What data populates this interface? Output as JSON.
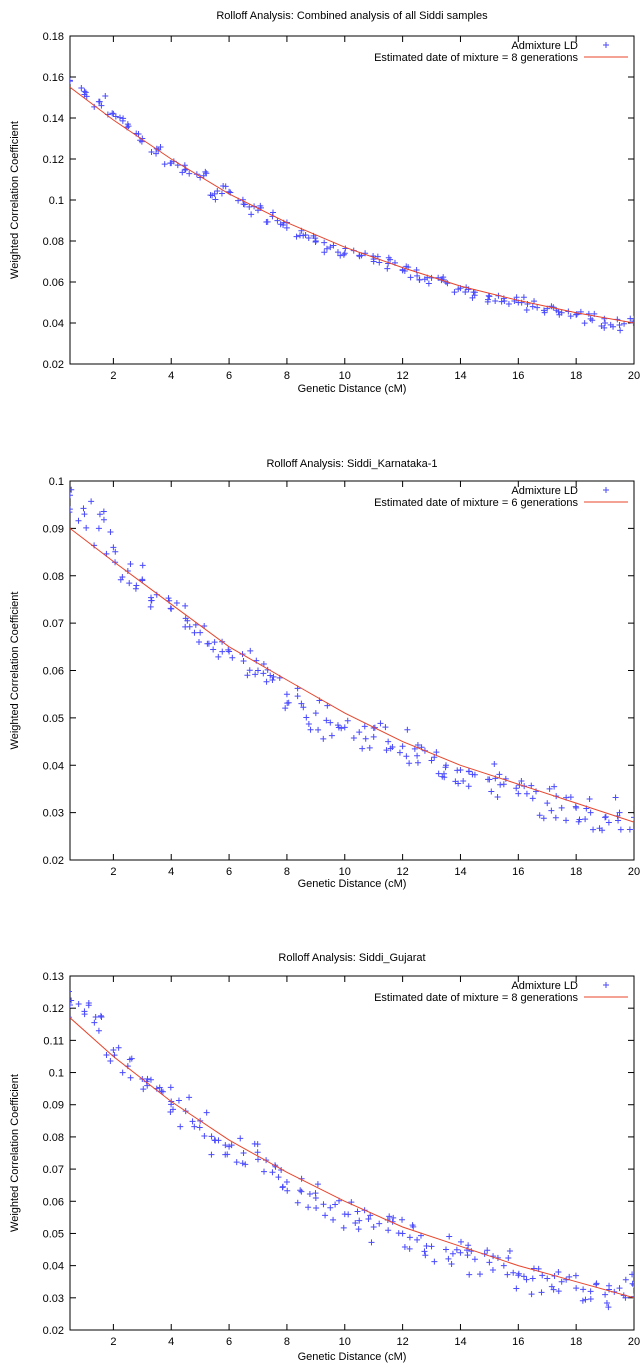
{
  "chart_data": [
    {
      "type": "scatter",
      "title": "Rolloff Analysis: Combined analysis of all Siddi samples",
      "xlabel": "Genetic Distance (cM)",
      "ylabel": "Weighted Correlation Coefficient",
      "xlim": [
        0.5,
        20
      ],
      "ylim": [
        0.02,
        0.18
      ],
      "x_ticks": [
        "2",
        "4",
        "6",
        "8",
        "10",
        "12",
        "14",
        "16",
        "18",
        "20"
      ],
      "y_ticks": [
        "0.02",
        "0.04",
        "0.06",
        "0.08",
        "0.1",
        "0.12",
        "0.14",
        "0.16",
        "0.18"
      ],
      "legend_position": "top-right",
      "series": [
        {
          "name": "Admixture LD",
          "kind": "points",
          "color": "#4a4aff",
          "x": [
            0.5,
            1.0,
            1.5,
            2.0,
            2.5,
            3.0,
            3.5,
            4.0,
            4.5,
            5.0,
            5.5,
            6.0,
            6.5,
            7.0,
            7.5,
            8.0,
            8.5,
            9.0,
            9.5,
            10.0,
            10.5,
            11.0,
            11.5,
            12.0,
            12.5,
            13.0,
            13.5,
            14.0,
            14.5,
            15.0,
            15.5,
            16.0,
            16.5,
            17.0,
            17.5,
            18.0,
            18.5,
            19.0,
            19.5,
            20.0
          ],
          "y": [
            0.158,
            0.153,
            0.148,
            0.142,
            0.137,
            0.13,
            0.125,
            0.118,
            0.115,
            0.111,
            0.103,
            0.104,
            0.098,
            0.095,
            0.092,
            0.089,
            0.085,
            0.08,
            0.077,
            0.074,
            0.073,
            0.07,
            0.069,
            0.066,
            0.063,
            0.062,
            0.06,
            0.057,
            0.055,
            0.053,
            0.052,
            0.05,
            0.048,
            0.047,
            0.045,
            0.044,
            0.042,
            0.04,
            0.039,
            0.042
          ]
        },
        {
          "name": "Estimated date of mixture = 8 generations",
          "kind": "line",
          "color": "#e8442a",
          "x": [
            0.5,
            2,
            4,
            6,
            8,
            10,
            12,
            14,
            16,
            18,
            20
          ],
          "y": [
            0.155,
            0.139,
            0.12,
            0.103,
            0.089,
            0.077,
            0.067,
            0.058,
            0.051,
            0.045,
            0.04
          ]
        }
      ]
    },
    {
      "type": "scatter",
      "title": "Rolloff Analysis: Siddi_Karnataka-1",
      "xlabel": "Genetic Distance (cM)",
      "ylabel": "Weighted Correlation Coefficient",
      "xlim": [
        0.5,
        20
      ],
      "ylim": [
        0.02,
        0.1
      ],
      "x_ticks": [
        "2",
        "4",
        "6",
        "8",
        "10",
        "12",
        "14",
        "16",
        "18",
        "20"
      ],
      "y_ticks": [
        "0.02",
        "0.03",
        "0.04",
        "0.05",
        "0.06",
        "0.07",
        "0.08",
        "0.09",
        "0.1"
      ],
      "legend_position": "top-right",
      "series": [
        {
          "name": "Admixture LD",
          "kind": "points",
          "color": "#4a4aff",
          "x": [
            0.5,
            1.0,
            1.5,
            2.0,
            2.5,
            3.0,
            3.5,
            4.0,
            4.5,
            5.0,
            5.5,
            6.0,
            6.5,
            7.0,
            7.5,
            8.0,
            8.5,
            9.0,
            9.5,
            10.0,
            10.5,
            11.0,
            11.5,
            12.0,
            12.5,
            13.0,
            13.5,
            14.0,
            14.5,
            15.0,
            15.5,
            16.0,
            16.5,
            17.0,
            17.5,
            18.0,
            18.5,
            19.0,
            19.5,
            20.0
          ],
          "y": [
            0.097,
            0.093,
            0.09,
            0.086,
            0.081,
            0.079,
            0.076,
            0.073,
            0.071,
            0.068,
            0.066,
            0.064,
            0.062,
            0.06,
            0.058,
            0.055,
            0.053,
            0.051,
            0.049,
            0.048,
            0.047,
            0.046,
            0.045,
            0.044,
            0.042,
            0.041,
            0.04,
            0.039,
            0.038,
            0.037,
            0.036,
            0.034,
            0.033,
            0.032,
            0.031,
            0.031,
            0.03,
            0.029,
            0.03,
            0.029
          ]
        },
        {
          "name": "Estimated date of mixture = 6 generations",
          "kind": "line",
          "color": "#e8442a",
          "x": [
            0.5,
            2,
            4,
            6,
            8,
            10,
            12,
            14,
            16,
            18,
            20
          ],
          "y": [
            0.09,
            0.083,
            0.074,
            0.065,
            0.058,
            0.051,
            0.045,
            0.04,
            0.036,
            0.032,
            0.028
          ]
        }
      ]
    },
    {
      "type": "scatter",
      "title": "Rolloff Analysis: Siddi_Gujarat",
      "xlabel": "Genetic Distance (cM)",
      "ylabel": "Weighted Correlation Coefficient",
      "xlim": [
        0.5,
        20
      ],
      "ylim": [
        0.02,
        0.13
      ],
      "x_ticks": [
        "2",
        "4",
        "6",
        "8",
        "10",
        "12",
        "14",
        "16",
        "18",
        "20"
      ],
      "y_ticks": [
        "0.02",
        "0.03",
        "0.04",
        "0.05",
        "0.06",
        "0.07",
        "0.08",
        "0.09",
        "0.1",
        "0.11",
        "0.12",
        "0.13"
      ],
      "legend_position": "top-right",
      "series": [
        {
          "name": "Admixture LD",
          "kind": "points",
          "color": "#4a4aff",
          "x": [
            0.5,
            1.0,
            1.5,
            2.0,
            2.5,
            3.0,
            3.5,
            4.0,
            4.5,
            5.0,
            5.5,
            6.0,
            6.5,
            7.0,
            7.5,
            8.0,
            8.5,
            9.0,
            9.5,
            10.0,
            10.5,
            11.0,
            11.5,
            12.0,
            12.5,
            13.0,
            13.5,
            14.0,
            14.5,
            15.0,
            15.5,
            16.0,
            16.5,
            17.0,
            17.5,
            18.0,
            18.5,
            19.0,
            19.5,
            20.0
          ],
          "y": [
            0.121,
            0.119,
            0.113,
            0.107,
            0.102,
            0.098,
            0.095,
            0.091,
            0.088,
            0.085,
            0.079,
            0.077,
            0.075,
            0.073,
            0.069,
            0.066,
            0.063,
            0.061,
            0.058,
            0.056,
            0.054,
            0.052,
            0.051,
            0.05,
            0.048,
            0.046,
            0.045,
            0.044,
            0.042,
            0.041,
            0.04,
            0.037,
            0.036,
            0.036,
            0.035,
            0.033,
            0.032,
            0.031,
            0.033,
            0.034
          ]
        },
        {
          "name": "Estimated date of mixture = 8 generations",
          "kind": "line",
          "color": "#e8442a",
          "x": [
            0.5,
            2,
            4,
            6,
            8,
            10,
            12,
            14,
            16,
            18,
            20
          ],
          "y": [
            0.117,
            0.105,
            0.091,
            0.079,
            0.069,
            0.06,
            0.052,
            0.046,
            0.04,
            0.035,
            0.03
          ]
        }
      ]
    }
  ]
}
